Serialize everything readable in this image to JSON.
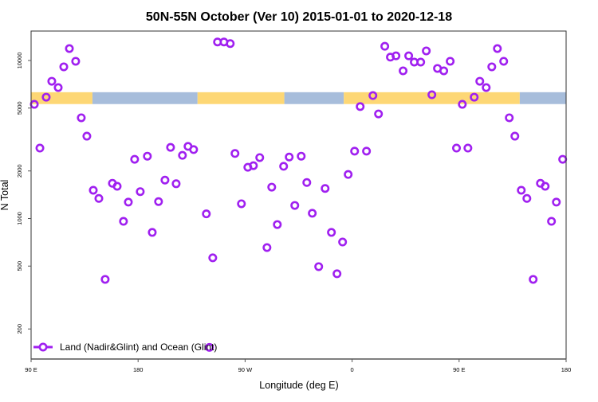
{
  "chart_data": {
    "type": "scatter",
    "title": "50N-55N October (Ver 10)   2015-01-01 to 2020-12-18",
    "xlabel": "Longitude (deg E)",
    "ylabel": "N Total",
    "xlim": [
      90,
      540
    ],
    "ylim": [
      122,
      15200
    ],
    "yscale": "log",
    "grid": false,
    "x_ticks": [
      {
        "value": 90,
        "label": "90 E"
      },
      {
        "value": 180,
        "label": "180"
      },
      {
        "value": 270,
        "label": "90 W"
      },
      {
        "value": 360,
        "label": "0"
      },
      {
        "value": 450,
        "label": "90 E"
      },
      {
        "value": 540,
        "label": "180"
      }
    ],
    "y_ticks": [
      {
        "value": 200,
        "label": "200"
      },
      {
        "value": 500,
        "label": "500"
      },
      {
        "value": 1000,
        "label": "1000"
      },
      {
        "value": 2000,
        "label": "2000"
      },
      {
        "value": 5000,
        "label": "5000"
      },
      {
        "value": 10000,
        "label": "10000"
      }
    ],
    "legend": {
      "position": "bottom-left",
      "label": "Land (Nadir&Glint) and Ocean (Glint)"
    },
    "colors": {
      "series": "#a020f0",
      "land": "#fdd775",
      "ocean": "#a7bddb"
    },
    "surface_band": {
      "value_range": [
        5300,
        6300
      ],
      "segments": [
        {
          "type": "land",
          "from": 90,
          "to": 141.6
        },
        {
          "type": "ocean",
          "from": 141.6,
          "to": 230
        },
        {
          "type": "land",
          "from": 230,
          "to": 303
        },
        {
          "type": "ocean",
          "from": 303,
          "to": 353
        },
        {
          "type": "land",
          "from": 353,
          "to": 501
        },
        {
          "type": "ocean",
          "from": 501,
          "to": 540
        }
      ]
    },
    "series": [
      {
        "name": "Land (Nadir&Glint) and Ocean (Glint)",
        "points": [
          [
            92.7,
            5280
          ],
          [
            97.4,
            2790
          ],
          [
            102.7,
            5860
          ],
          [
            107.4,
            7390
          ],
          [
            112.8,
            6740
          ],
          [
            117.5,
            9120
          ],
          [
            122.2,
            11900
          ],
          [
            127.5,
            9890
          ],
          [
            132.2,
            4340
          ],
          [
            136.9,
            3320
          ],
          [
            142.3,
            1510
          ],
          [
            147.0,
            1340
          ],
          [
            152.3,
            412
          ],
          [
            158.4,
            1670
          ],
          [
            162.4,
            1600
          ],
          [
            167.7,
            960
          ],
          [
            171.8,
            1270
          ],
          [
            177.1,
            2370
          ],
          [
            181.8,
            1480
          ],
          [
            187.8,
            2480
          ],
          [
            191.9,
            817
          ],
          [
            197.2,
            1280
          ],
          [
            202.6,
            1750
          ],
          [
            207.3,
            2820
          ],
          [
            212.0,
            1660
          ],
          [
            217.3,
            2510
          ],
          [
            222.0,
            2860
          ],
          [
            226.7,
            2730
          ],
          [
            237.4,
            1070
          ],
          [
            242.8,
            564
          ],
          [
            246.8,
            13100
          ],
          [
            252.2,
            13100
          ],
          [
            257.5,
            12800
          ],
          [
            261.5,
            2580
          ],
          [
            266.9,
            1240
          ],
          [
            272.3,
            2110
          ],
          [
            277.0,
            2160
          ],
          [
            282.3,
            2430
          ],
          [
            288.4,
            655
          ],
          [
            292.4,
            1580
          ],
          [
            297.1,
            916
          ],
          [
            302.4,
            2140
          ],
          [
            307.1,
            2450
          ],
          [
            311.8,
            1210
          ],
          [
            317.2,
            2480
          ],
          [
            321.9,
            1690
          ],
          [
            326.5,
            1080
          ],
          [
            331.9,
            496
          ],
          [
            337.3,
            1550
          ],
          [
            342.6,
            817
          ],
          [
            347.3,
            447
          ],
          [
            352.0,
            710
          ],
          [
            356.7,
            1900
          ],
          [
            362.1,
            2670
          ],
          [
            366.8,
            5110
          ],
          [
            372.1,
            2670
          ],
          [
            377.5,
            6000
          ],
          [
            382.2,
            4590
          ],
          [
            387.5,
            12300
          ],
          [
            392.2,
            10500
          ],
          [
            396.9,
            10700
          ],
          [
            402.9,
            8600
          ],
          [
            407.6,
            10700
          ],
          [
            412.3,
            9770
          ],
          [
            417.7,
            9770
          ],
          [
            422.4,
            11500
          ],
          [
            427.1,
            6070
          ],
          [
            431.8,
            8910
          ],
          [
            437.1,
            8600
          ],
          [
            442.5,
            9890
          ],
          [
            447.8,
            2790
          ],
          [
            452.7,
            5280
          ],
          [
            457.4,
            2790
          ],
          [
            462.7,
            5860
          ],
          [
            467.4,
            7390
          ],
          [
            472.8,
            6740
          ],
          [
            477.5,
            9120
          ],
          [
            482.2,
            11900
          ],
          [
            487.5,
            9890
          ],
          [
            492.2,
            4340
          ],
          [
            496.9,
            3320
          ],
          [
            502.3,
            1510
          ],
          [
            507.0,
            1340
          ],
          [
            512.3,
            412
          ],
          [
            518.4,
            1670
          ],
          [
            522.4,
            1600
          ],
          [
            527.7,
            960
          ],
          [
            531.8,
            1270
          ],
          [
            537.1,
            2370
          ],
          [
            240.0,
            153
          ]
        ]
      }
    ]
  }
}
